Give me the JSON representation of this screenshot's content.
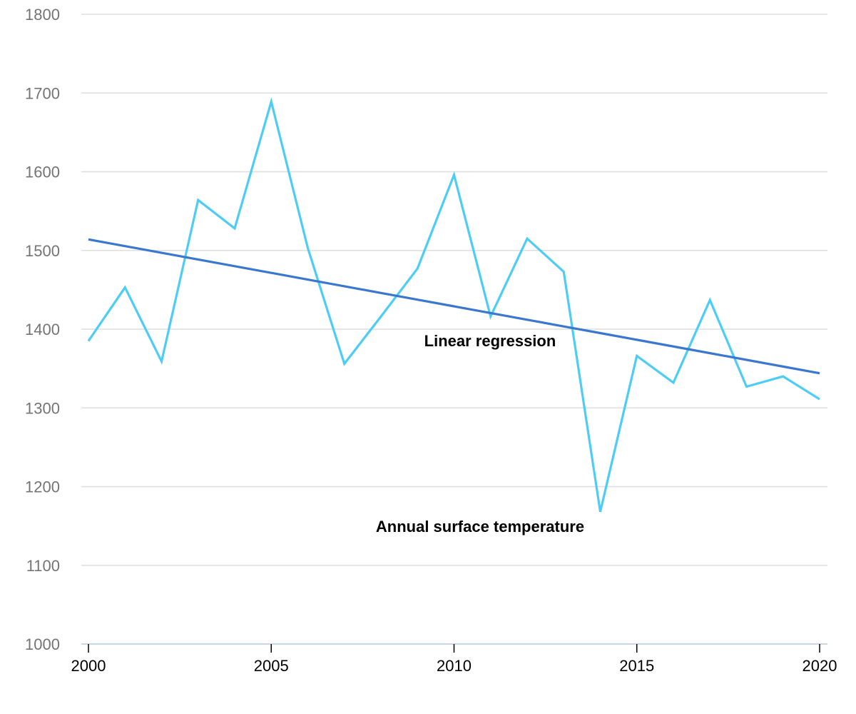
{
  "chart_data": {
    "type": "line",
    "title": "",
    "xlabel": "",
    "ylabel": "",
    "xlim": [
      2000,
      2020
    ],
    "ylim": [
      1000,
      1800
    ],
    "x_ticks": [
      "2000",
      "2005",
      "2010",
      "2015",
      "2020"
    ],
    "y_ticks": [
      "1000",
      "1100",
      "1200",
      "1300",
      "1400",
      "1500",
      "1600",
      "1700",
      "1800"
    ],
    "grid": "horizontal",
    "legend": "none",
    "x": [
      2000,
      2001,
      2002,
      2003,
      2004,
      2005,
      2006,
      2007,
      2008,
      2009,
      2010,
      2011,
      2012,
      2013,
      2014,
      2015,
      2016,
      2017,
      2018,
      2019,
      2020
    ],
    "series": [
      {
        "name": "Annual surface temperature",
        "color": "#4dcdf5",
        "values": [
          1385,
          1453,
          1359,
          1564,
          1528,
          1689,
          1503,
          1356,
          1416,
          1477,
          1596,
          1416,
          1515,
          1473,
          1168,
          1366,
          1332,
          1437,
          1327,
          1340,
          1311
        ]
      },
      {
        "name": "Linear regression",
        "color": "#3a78d0",
        "values": [
          1514,
          1505.5,
          1497,
          1488.5,
          1480,
          1471.5,
          1463,
          1454.5,
          1446,
          1437.5,
          1429,
          1420.5,
          1412,
          1403.5,
          1395,
          1386.5,
          1378,
          1369.5,
          1361,
          1352.5,
          1344
        ]
      }
    ],
    "annotations": [
      {
        "text": "Linear regression",
        "series": "Linear regression"
      },
      {
        "text": "Annual surface temperature",
        "series": "Annual surface temperature"
      }
    ]
  }
}
